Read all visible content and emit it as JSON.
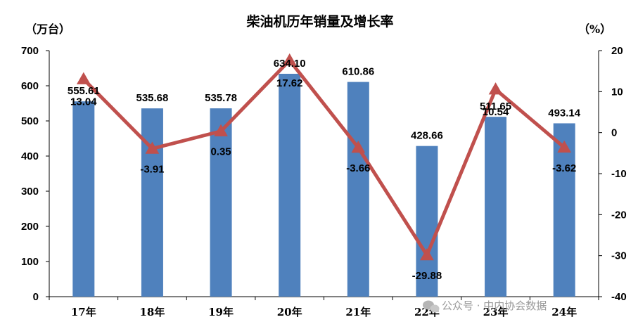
{
  "chart_data": {
    "type": "bar",
    "title": "柴油机历年销量及增长率",
    "ylabel_left": "（万台）",
    "ylabel_right": "（%）",
    "categories": [
      "17年",
      "18年",
      "19年",
      "20年",
      "21年",
      "22年",
      "23年",
      "24年"
    ],
    "series": [
      {
        "type": "bar",
        "axis": "left",
        "values": [
          555.61,
          535.68,
          535.78,
          634.1,
          610.86,
          428.66,
          511.65,
          493.14
        ],
        "labels": [
          "555.61",
          "535.68",
          "535.78",
          "634.10",
          "610.86",
          "428.66",
          "511.65",
          "493.14"
        ],
        "color": "#4f81bd"
      },
      {
        "type": "line",
        "axis": "right",
        "values": [
          13.04,
          -3.91,
          0.35,
          17.62,
          -3.66,
          -29.88,
          10.54,
          -3.62
        ],
        "labels": [
          "13.04",
          "-3.91",
          "0.35",
          "17.62",
          "-3.66",
          "-29.88",
          "10.54",
          "-3.62"
        ],
        "color": "#c0504d",
        "marker": "triangle"
      }
    ],
    "ylim_left": [
      0,
      700
    ],
    "yticks_left": [
      "0",
      "100",
      "200",
      "300",
      "400",
      "500",
      "600",
      "700"
    ],
    "ylim_right": [
      -40,
      20
    ],
    "yticks_right": [
      "-40",
      "-30",
      "-20",
      "-10",
      "0",
      "10",
      "20"
    ],
    "grid": false,
    "legend": "none"
  },
  "watermark": {
    "text": "公众号 · 中内协会数据",
    "icon": "wechat-icon"
  }
}
